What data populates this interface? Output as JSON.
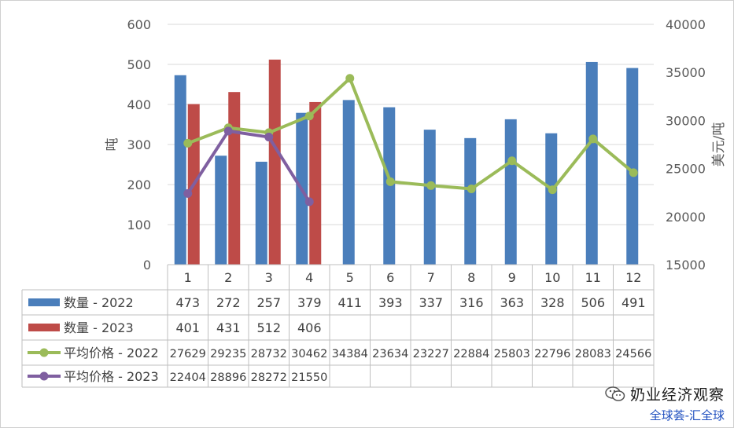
{
  "chart_data": {
    "type": "bar",
    "categories": [
      "1",
      "2",
      "3",
      "4",
      "5",
      "6",
      "7",
      "8",
      "9",
      "10",
      "11",
      "12"
    ],
    "ylabel_left": "吨",
    "ylabel_right": "美元/吨",
    "ylim_left": [
      0,
      600
    ],
    "yticks_left": [
      "600",
      "500",
      "400",
      "300",
      "200",
      "100",
      "0"
    ],
    "ylim_right": [
      15000,
      40000
    ],
    "yticks_right": [
      "40000",
      "35000",
      "30000",
      "25000",
      "20000",
      "15000"
    ],
    "grid": true,
    "legend": "data-table-below",
    "series": [
      {
        "name": "数量 - 2022",
        "type": "bar",
        "axis": "left",
        "color": "#4a7ebb",
        "values": [
          473,
          272,
          257,
          379,
          411,
          393,
          337,
          316,
          363,
          328,
          506,
          491
        ]
      },
      {
        "name": "数量 - 2023",
        "type": "bar",
        "axis": "left",
        "color": "#be4b48",
        "values": [
          401,
          431,
          512,
          406,
          null,
          null,
          null,
          null,
          null,
          null,
          null,
          null
        ]
      },
      {
        "name": "平均价格 - 2022",
        "type": "line",
        "axis": "right",
        "color": "#9bbb59",
        "values": [
          27629,
          29235,
          28732,
          30462,
          34384,
          23634,
          23227,
          22884,
          25803,
          22796,
          28083,
          24566
        ]
      },
      {
        "name": "平均价格 - 2023",
        "type": "line",
        "axis": "right",
        "color": "#7f5fa0",
        "values": [
          22404,
          28896,
          28272,
          21550,
          null,
          null,
          null,
          null,
          null,
          null,
          null,
          null
        ]
      }
    ]
  },
  "watermark": {
    "title": "奶业经济观察",
    "subtitle": "全球荟-汇全球",
    "icon": "wechat-icon"
  }
}
